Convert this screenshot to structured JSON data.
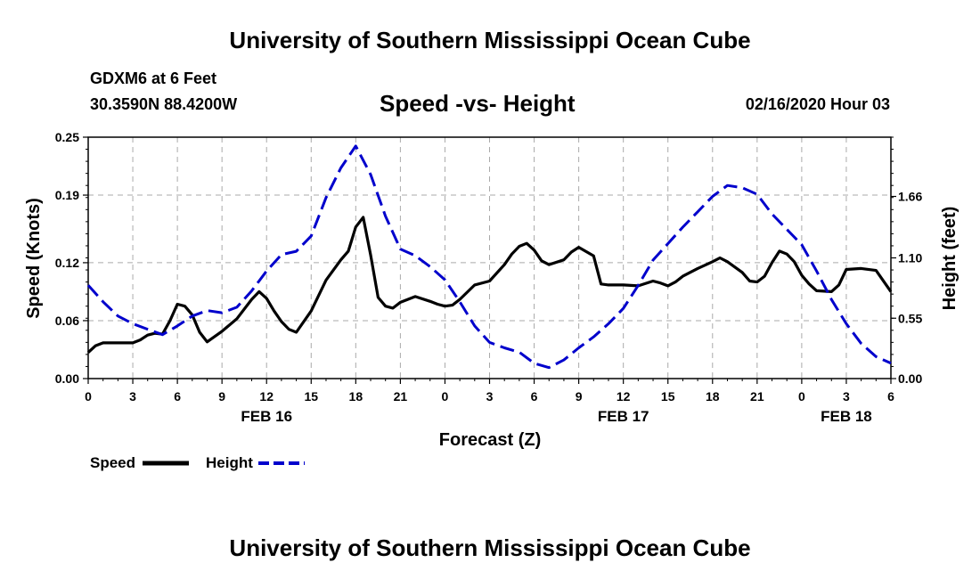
{
  "header": {
    "title": "University of Southern Mississippi Ocean Cube",
    "station": "GDXM6 at 6 Feet",
    "coordinates": "30.3590N 88.4200W",
    "datetime": "02/16/2020 Hour 03"
  },
  "footer": {
    "title": "University of Southern Mississippi Ocean Cube"
  },
  "chart_data": {
    "type": "line",
    "title": "Speed -vs- Height",
    "xlabel": "Forecast (Z)",
    "ylabel_left": "Speed (Knots)",
    "ylabel_right": "Height (feet)",
    "x_range": [
      0,
      54
    ],
    "x_tick_values": [
      0,
      3,
      6,
      9,
      12,
      15,
      18,
      21,
      24,
      27,
      30,
      33,
      36,
      39,
      42,
      45,
      48,
      51,
      54
    ],
    "x_tick_labels": [
      "0",
      "3",
      "6",
      "9",
      "12",
      "15",
      "18",
      "21",
      "0",
      "3",
      "6",
      "9",
      "12",
      "15",
      "18",
      "21",
      "0",
      "3",
      "6"
    ],
    "date_labels": [
      {
        "x": 12,
        "label": "FEB 16"
      },
      {
        "x": 36,
        "label": "FEB 17"
      },
      {
        "x": 51,
        "label": "FEB 18"
      }
    ],
    "ylim_left": [
      0,
      0.25
    ],
    "left_ticks": [
      0,
      0.06,
      0.12,
      0.19,
      0.25
    ],
    "left_tick_labels": [
      "0.00",
      "0.06",
      "0.12",
      "0.19",
      "0.25"
    ],
    "ylim_right": [
      0,
      2.2
    ],
    "right_ticks": [
      0,
      0.55,
      1.1,
      1.66
    ],
    "right_tick_labels": [
      "0.00",
      "0.55",
      "1.10",
      "1.66"
    ],
    "grid": true,
    "legend_position": "bottom-left",
    "series": [
      {
        "name": "Speed",
        "axis": "left",
        "color": "#000000",
        "style": "solid",
        "x": [
          0,
          0.5,
          1,
          2,
          3,
          3.5,
          4,
          4.5,
          5,
          5.5,
          6,
          6.5,
          7,
          7.5,
          8,
          9,
          10,
          11,
          11.5,
          12,
          12.5,
          13,
          13.5,
          14,
          15,
          16,
          17,
          17.5,
          18,
          18.5,
          19,
          19.5,
          20,
          20.5,
          21,
          22,
          23,
          23.5,
          24,
          24.5,
          25,
          26,
          27,
          28,
          28.5,
          29,
          29.5,
          30,
          30.5,
          31,
          32,
          32.5,
          33,
          34,
          34.5,
          35,
          35.5,
          36,
          37,
          38,
          38.5,
          39,
          39.5,
          40,
          41,
          42,
          42.5,
          43,
          44,
          44.5,
          45,
          45.5,
          46,
          46.5,
          47,
          47.5,
          48,
          48.5,
          49,
          50,
          50.5,
          51,
          52,
          53,
          54
        ],
        "values": [
          0.027,
          0.034,
          0.037,
          0.037,
          0.037,
          0.04,
          0.045,
          0.047,
          0.046,
          0.06,
          0.077,
          0.075,
          0.066,
          0.048,
          0.038,
          0.049,
          0.062,
          0.082,
          0.09,
          0.083,
          0.07,
          0.059,
          0.051,
          0.048,
          0.07,
          0.102,
          0.123,
          0.132,
          0.157,
          0.167,
          0.128,
          0.084,
          0.075,
          0.073,
          0.079,
          0.085,
          0.08,
          0.077,
          0.075,
          0.076,
          0.082,
          0.097,
          0.101,
          0.118,
          0.129,
          0.137,
          0.14,
          0.133,
          0.122,
          0.118,
          0.123,
          0.131,
          0.136,
          0.127,
          0.098,
          0.097,
          0.097,
          0.097,
          0.096,
          0.101,
          0.099,
          0.096,
          0.1,
          0.106,
          0.114,
          0.121,
          0.125,
          0.121,
          0.11,
          0.101,
          0.1,
          0.106,
          0.12,
          0.132,
          0.129,
          0.121,
          0.107,
          0.098,
          0.091,
          0.09,
          0.097,
          0.113,
          0.114,
          0.112,
          0.09
        ]
      },
      {
        "name": "Height",
        "axis": "right",
        "color": "#0000cc",
        "style": "dashed",
        "x": [
          0,
          1,
          2,
          3,
          4,
          5,
          6,
          7,
          8,
          9,
          10,
          11,
          12,
          13,
          14,
          15,
          16,
          17,
          18,
          19,
          20,
          21,
          22,
          23,
          24,
          25,
          26,
          27,
          28,
          29,
          30,
          31,
          32,
          33,
          34,
          35,
          36,
          37,
          38,
          39,
          40,
          41,
          42,
          43,
          44,
          45,
          46,
          47,
          48,
          49,
          50,
          51,
          52,
          53,
          54
        ],
        "values": [
          0.85,
          0.7,
          0.57,
          0.5,
          0.45,
          0.4,
          0.48,
          0.57,
          0.62,
          0.6,
          0.65,
          0.8,
          0.98,
          1.13,
          1.16,
          1.3,
          1.65,
          1.92,
          2.12,
          1.86,
          1.48,
          1.18,
          1.12,
          1.02,
          0.9,
          0.7,
          0.48,
          0.33,
          0.28,
          0.24,
          0.14,
          0.1,
          0.17,
          0.28,
          0.38,
          0.5,
          0.64,
          0.85,
          1.08,
          1.23,
          1.38,
          1.52,
          1.66,
          1.76,
          1.74,
          1.68,
          1.5,
          1.36,
          1.22,
          0.98,
          0.72,
          0.5,
          0.32,
          0.2,
          0.14
        ]
      }
    ]
  },
  "legend": {
    "speed_label": "Speed",
    "height_label": "Height"
  }
}
